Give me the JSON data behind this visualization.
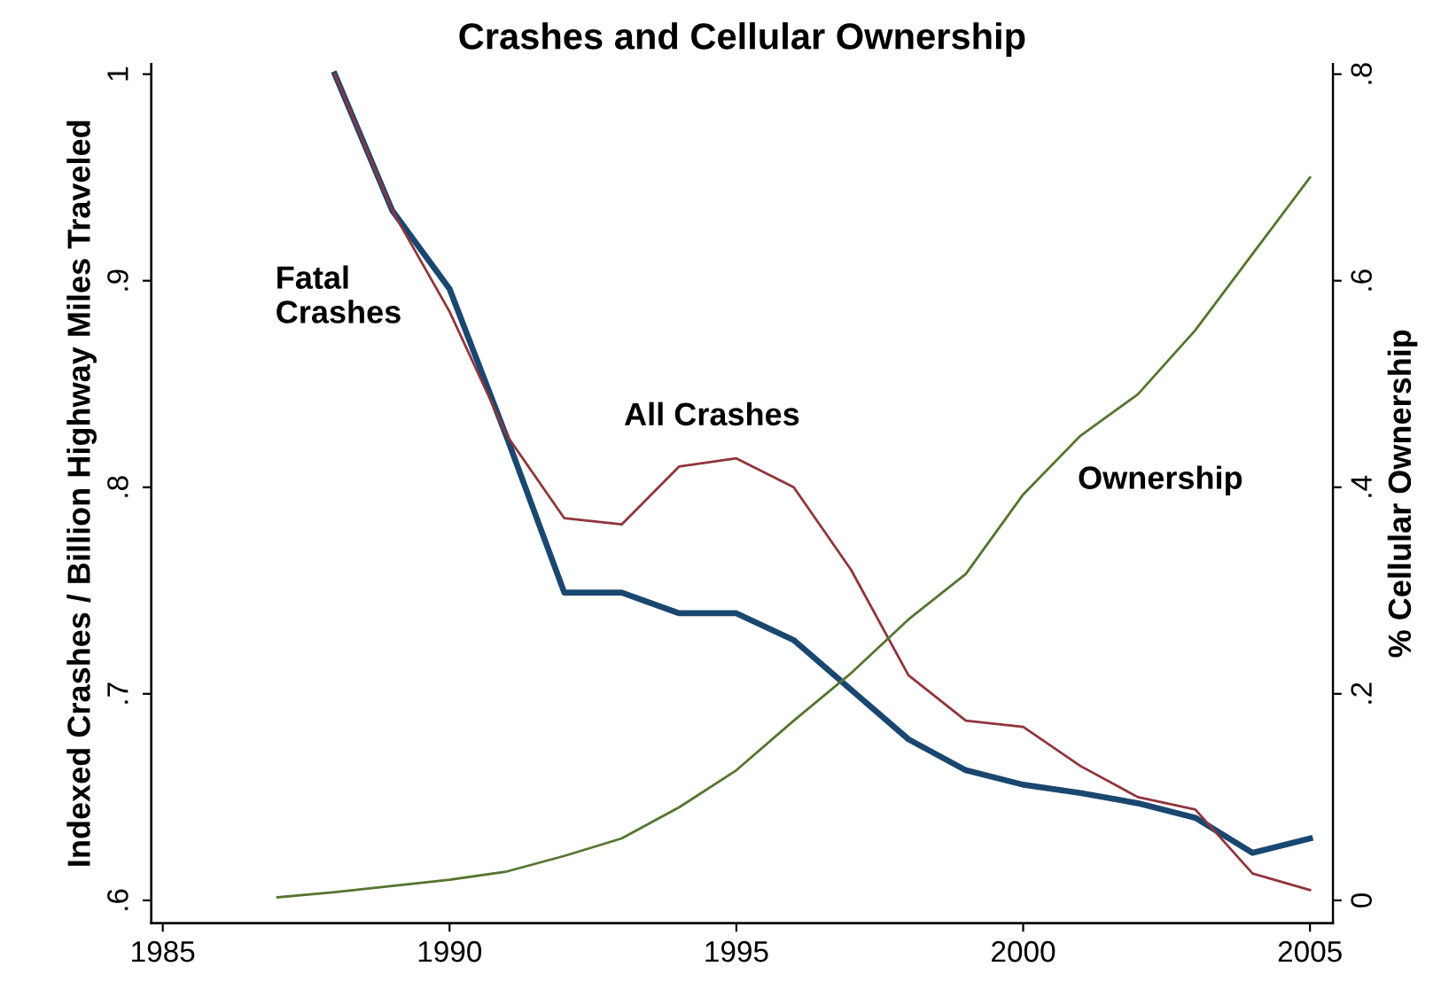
{
  "chart_data": {
    "type": "line",
    "title": "Crashes and Cellular Ownership",
    "ylabel": "Indexed Crashes / Billion Highway Miles Traveled",
    "y2label": "% Cellular Ownership",
    "xlim": [
      1984.8,
      2005.4
    ],
    "xticks": [
      1985,
      1990,
      1995,
      2000,
      2005
    ],
    "ylim": [
      0.589,
      1.005
    ],
    "yticks": [
      {
        "value": 0.6,
        "label": ".6"
      },
      {
        "value": 0.7,
        "label": ".7"
      },
      {
        "value": 0.8,
        "label": ".8"
      },
      {
        "value": 0.9,
        "label": ".9"
      },
      {
        "value": 1,
        "label": "1"
      }
    ],
    "y2lim": [
      -0.022,
      0.81
    ],
    "y2ticks": [
      {
        "value": 0,
        "label": "0"
      },
      {
        "value": 0.2,
        "label": ".2"
      },
      {
        "value": 0.4,
        "label": ".4"
      },
      {
        "value": 0.6,
        "label": ".6"
      },
      {
        "value": 0.8,
        "label": ".8"
      }
    ],
    "grid": false,
    "legend": false,
    "marker": "none",
    "line_style": "solid",
    "series": [
      {
        "name": "Fatal\nCrashes",
        "color": "#1a476f",
        "x": [
          1988,
          1989,
          1990,
          1991,
          1992,
          1993,
          1994,
          1995,
          1996,
          1997,
          1998,
          1999,
          2000,
          2001,
          2002,
          2003,
          2004,
          2005
        ],
        "values": [
          1.0,
          0.934,
          0.896,
          0.824,
          0.749,
          0.749,
          0.739,
          0.739,
          0.726,
          0.702,
          0.678,
          0.663,
          0.656,
          0.652,
          0.647,
          0.64,
          0.623,
          0.63
        ]
      },
      {
        "name": "All Crashes",
        "color": "#90353b",
        "x": [
          1988,
          1989,
          1990,
          1991,
          1992,
          1993,
          1994,
          1995,
          1996,
          1997,
          1998,
          1999,
          2000,
          2001,
          2002,
          2003,
          2004,
          2005
        ],
        "values": [
          1.0,
          0.934,
          0.885,
          0.825,
          0.785,
          0.782,
          0.81,
          0.814,
          0.8,
          0.76,
          0.709,
          0.687,
          0.684,
          0.665,
          0.65,
          0.644,
          0.613,
          0.605
        ]
      },
      {
        "name": "Ownership",
        "color": "#55752f",
        "axis": "y2",
        "x": [
          1987,
          1988,
          1989,
          1990,
          1991,
          1992,
          1993,
          1994,
          1995,
          1996,
          1997,
          1998,
          1999,
          2000,
          2001,
          2002,
          2003,
          2004,
          2005
        ],
        "values": [
          0.003,
          0.008,
          0.014,
          0.02,
          0.028,
          0.043,
          0.06,
          0.09,
          0.126,
          0.174,
          0.22,
          0.272,
          0.316,
          0.393,
          0.45,
          0.49,
          0.552,
          0.626,
          0.7
        ]
      }
    ]
  }
}
